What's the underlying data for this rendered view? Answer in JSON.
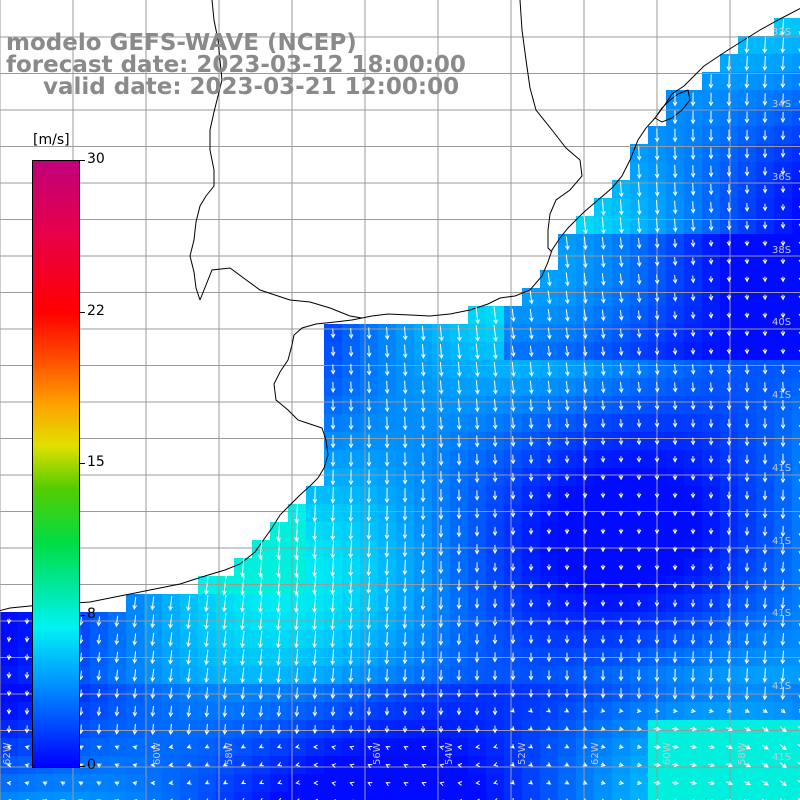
{
  "title": {
    "line1": "modelo GEFS-WAVE (NCEP)",
    "line2": "forecast date: 2023-03-12 18:00:00",
    "line3": "valid date: 2023-03-21 12:00:00"
  },
  "colorbar": {
    "unit": "[m/s]",
    "ticks": [
      "30",
      "22",
      "15",
      "8",
      "0"
    ],
    "tick_values": [
      30,
      22,
      15,
      8,
      0
    ],
    "min": 0,
    "max": 30,
    "colors": [
      "#0000ff",
      "#00aaff",
      "#00f2f2",
      "#00dd44",
      "#e0e000",
      "#ffa000",
      "#ff0000",
      "#c0007a"
    ]
  },
  "map": {
    "field": "wind speed with direction arrows",
    "lat_labels": [
      "32S",
      "34S",
      "36S",
      "38S",
      "40S",
      "41S"
    ],
    "lon_labels": [
      "62W",
      "60W",
      "58W",
      "56W",
      "54W",
      "52W"
    ],
    "land_color": "#ffffff",
    "coastline_color": "#000000",
    "gridline_color": "#9a9a9a"
  }
}
